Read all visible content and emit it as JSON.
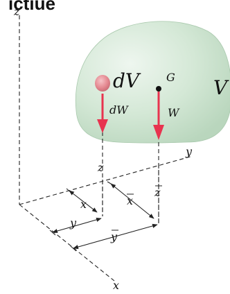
{
  "header": {
    "cropped_title": "ictiue"
  },
  "labels": {
    "z_axis": "z",
    "y_axis": "y",
    "x_axis": "x",
    "dV": "dV",
    "G": "G",
    "V": "V",
    "dW": "dW",
    "W": "W",
    "z_small": "z",
    "z_bar": "z",
    "x_small": "x",
    "x_bar": "x",
    "y_small": "y",
    "y_bar": "y"
  },
  "colors": {
    "body_fill": "#d4e8d6",
    "arrow_red": "#e8334f",
    "element_pink": "#e58a92",
    "line": "#222222"
  }
}
